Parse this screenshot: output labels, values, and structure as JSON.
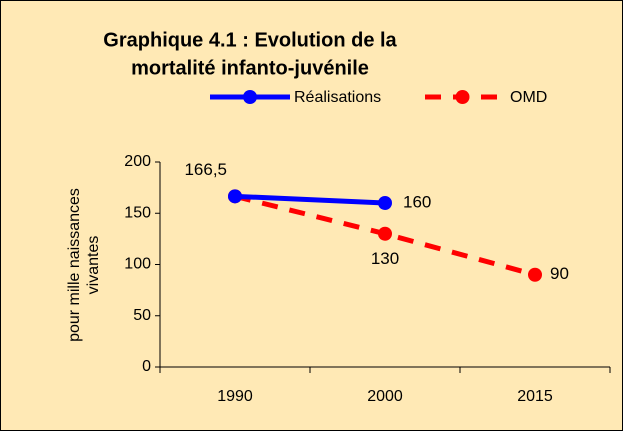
{
  "chart_data": {
    "type": "line",
    "title": [
      "Graphique 4.1 : Evolution de la",
      "mortalité infanto-juvénile"
    ],
    "ylabel": [
      "pour mille naissances",
      "vivantes"
    ],
    "categories": [
      "1990",
      "2000",
      "2015"
    ],
    "series": [
      {
        "name": "Réalisations",
        "color": "#0000ff",
        "dashed": false,
        "values": [
          166.5,
          160,
          null
        ],
        "value_labels": [
          "166,5",
          "160",
          null
        ]
      },
      {
        "name": "OMD",
        "color": "#ff0000",
        "dashed": true,
        "values": [
          166.5,
          130,
          90
        ],
        "value_labels": [
          null,
          "130",
          "90"
        ]
      }
    ],
    "ylim": [
      0,
      200
    ],
    "yticks": [
      0,
      50,
      100,
      150,
      200
    ],
    "grid": false,
    "legend": "top"
  }
}
